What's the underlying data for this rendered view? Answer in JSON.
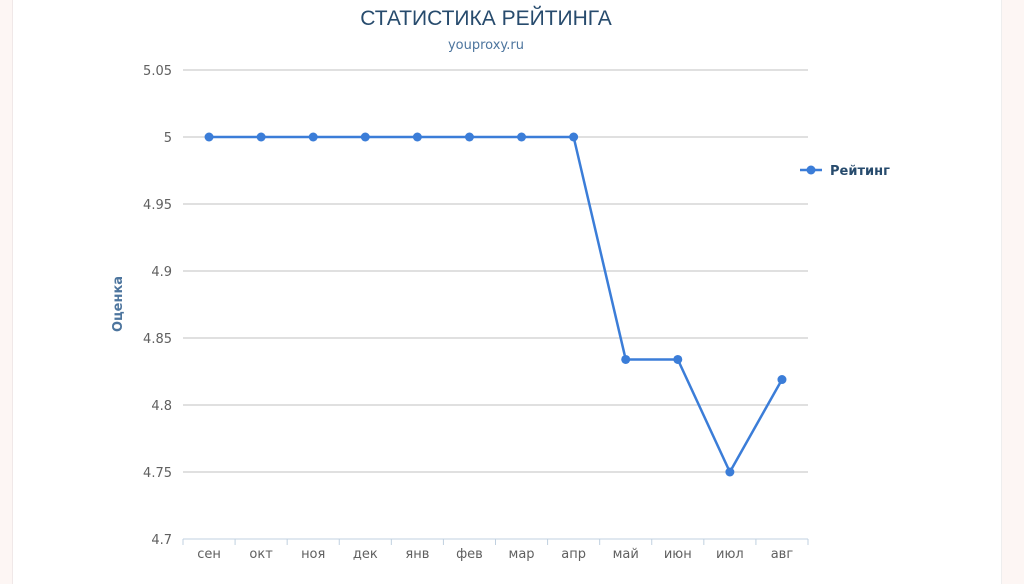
{
  "chart_data": {
    "type": "line",
    "title": "СТАТИСТИКА РЕЙТИНГА",
    "subtitle": "youproxy.ru",
    "xlabel": "",
    "ylabel": "Оценка",
    "categories": [
      "сен",
      "окт",
      "ноя",
      "дек",
      "янв",
      "фев",
      "мар",
      "апр",
      "май",
      "июн",
      "июл",
      "авг"
    ],
    "series": [
      {
        "name": "Рейтинг",
        "values": [
          5,
          5,
          5,
          5,
          5,
          5,
          5,
          5,
          4.834,
          4.834,
          4.75,
          4.819
        ],
        "color": "#3b7dd8"
      }
    ],
    "ylim": [
      4.7,
      5.05
    ],
    "yticks": [
      "4.7",
      "4.75",
      "4.8",
      "4.85",
      "4.9",
      "4.95",
      "5",
      "5.05"
    ],
    "grid": true,
    "legend_position": "right"
  }
}
